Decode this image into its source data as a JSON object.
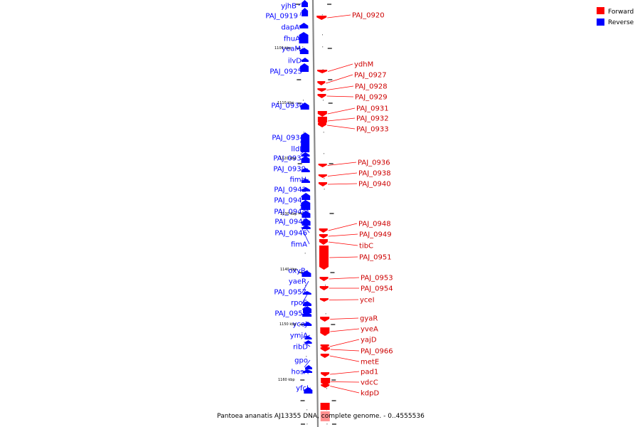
{
  "legend": {
    "forward_label": "Forward",
    "reverse_label": "Reverse",
    "forward_color": "#ff0000",
    "reverse_color": "#0000ff"
  },
  "caption": "Pantoea ananatis AJ13355 DNA, complete genome. - 0..4555536",
  "scale_labels": [
    "1100 kbp",
    "1110 kbp",
    "1120 kbp",
    "1130 kbp",
    "1140 kbp",
    "1150 kbp",
    "1160 kbp"
  ],
  "reverse_genes": [
    "yjhB",
    "PAJ_0919",
    "dapA",
    "fhuA",
    "yeaM",
    "ilvD",
    "PAJ_0925",
    "PAJ_0930",
    "PAJ_0934",
    "lldD",
    "PAJ_0937",
    "PAJ_0939",
    "fimH",
    "PAJ_0942",
    "PAJ_0943",
    "PAJ_0944",
    "PAJ_0945",
    "PAJ_0946",
    "fimA",
    "oxyR",
    "yaeR",
    "PAJ_0957",
    "rpoE",
    "PAJ_0959",
    "yceJ",
    "ymjA",
    "ribD",
    "gpo",
    "hosA",
    "yfcJ"
  ],
  "forward_genes": [
    "PAJ_0920",
    "ydhM",
    "PAJ_0927",
    "PAJ_0928",
    "PAJ_0929",
    "PAJ_0931",
    "PAJ_0932",
    "PAJ_0933",
    "PAJ_0936",
    "PAJ_0938",
    "PAJ_0940",
    "PAJ_0948",
    "PAJ_0949",
    "tibC",
    "PAJ_0951",
    "PAJ_0953",
    "PAJ_0954",
    "yceI",
    "gyaR",
    "yveA",
    "yajD",
    "PAJ_0966",
    "metE",
    "pad1",
    "vdcC",
    "kdpD"
  ]
}
